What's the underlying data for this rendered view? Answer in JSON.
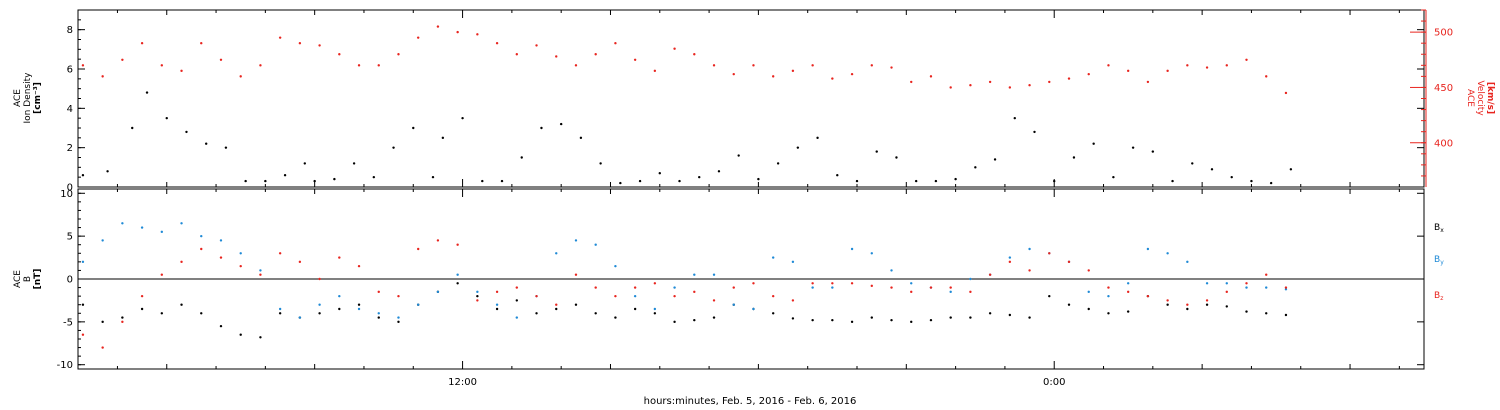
{
  "chart_data": [
    {
      "type": "scatter",
      "panel": "top",
      "xlabel": "hours:minutes, Feb.  5, 2016 - Feb.  6, 2016",
      "x_units": "hours since 2016-02-05 00:00",
      "xlim": [
        4.2,
        31.5
      ],
      "x_major_ticks": [
        12,
        24
      ],
      "x_major_labels": [
        "12:00",
        "0:00"
      ],
      "ylabel_left": [
        "ACE",
        "Ion Density",
        "[cm⁻³]"
      ],
      "ylim_left": [
        0,
        9
      ],
      "yticks_left": [
        0,
        2,
        4,
        6,
        8
      ],
      "ylabel_right": [
        "ACE",
        "Velocity",
        "[km/s]"
      ],
      "ylim_right": [
        360,
        520
      ],
      "yticks_right": [
        400,
        450,
        500
      ],
      "series": [
        {
          "name": "Ion Density",
          "axis": "left",
          "color": "#000000",
          "x": [
            4.3,
            4.8,
            5.3,
            5.6,
            6.0,
            6.4,
            6.8,
            7.2,
            7.6,
            8.0,
            8.4,
            8.8,
            9.0,
            9.4,
            9.8,
            10.2,
            10.6,
            11.0,
            11.4,
            11.6,
            12.0,
            12.4,
            12.8,
            13.2,
            13.6,
            14.0,
            14.4,
            14.8,
            15.2,
            15.6,
            16.0,
            16.4,
            16.8,
            17.2,
            17.6,
            18.0,
            18.4,
            18.8,
            19.2,
            19.6,
            20.0,
            20.4,
            20.8,
            21.2,
            21.6,
            22.0,
            22.4,
            22.8,
            23.2,
            23.6,
            24.0,
            24.4,
            24.8,
            25.2,
            25.6,
            26.0,
            26.4,
            26.8,
            27.2,
            27.6,
            28.0,
            28.4,
            28.8
          ],
          "y": [
            0.6,
            0.8,
            3.0,
            4.8,
            3.5,
            2.8,
            2.2,
            2.0,
            0.3,
            0.3,
            0.6,
            1.2,
            0.3,
            0.4,
            1.2,
            0.5,
            2.0,
            3.0,
            0.5,
            2.5,
            3.5,
            0.3,
            0.3,
            1.5,
            3.0,
            3.2,
            2.5,
            1.2,
            0.2,
            0.3,
            0.7,
            0.3,
            0.5,
            0.8,
            1.6,
            0.4,
            1.2,
            2.0,
            2.5,
            0.6,
            0.3,
            1.8,
            1.5,
            0.3,
            0.3,
            0.4,
            1.0,
            1.4,
            3.5,
            2.8,
            0.3,
            1.5,
            2.2,
            0.5,
            2.0,
            1.8,
            0.3,
            1.2,
            0.9,
            0.5,
            0.3,
            0.2,
            0.9
          ]
        },
        {
          "name": "Velocity",
          "axis": "right",
          "color": "#e8251f",
          "x": [
            4.3,
            4.7,
            5.1,
            5.5,
            5.9,
            6.3,
            6.7,
            7.1,
            7.5,
            7.9,
            8.3,
            8.7,
            9.1,
            9.5,
            9.9,
            10.3,
            10.7,
            11.1,
            11.5,
            11.9,
            12.3,
            12.7,
            13.1,
            13.5,
            13.9,
            14.3,
            14.7,
            15.1,
            15.5,
            15.9,
            16.3,
            16.7,
            17.1,
            17.5,
            17.9,
            18.3,
            18.7,
            19.1,
            19.5,
            19.9,
            20.3,
            20.7,
            21.1,
            21.5,
            21.9,
            22.3,
            22.7,
            23.1,
            23.5,
            23.9,
            24.3,
            24.7,
            25.1,
            25.5,
            25.9,
            26.3,
            26.7,
            27.1,
            27.5,
            27.9,
            28.3,
            28.7
          ],
          "y": [
            470,
            460,
            475,
            490,
            470,
            465,
            490,
            475,
            460,
            470,
            495,
            490,
            488,
            480,
            470,
            470,
            480,
            495,
            505,
            500,
            498,
            490,
            480,
            488,
            478,
            470,
            480,
            490,
            475,
            465,
            485,
            480,
            470,
            462,
            470,
            460,
            465,
            470,
            458,
            462,
            470,
            468,
            455,
            460,
            450,
            452,
            455,
            450,
            452,
            455,
            458,
            462,
            470,
            465,
            455,
            465,
            470,
            468,
            470,
            475,
            460,
            445
          ]
        }
      ]
    },
    {
      "type": "scatter",
      "panel": "bottom",
      "xlim": [
        4.2,
        31.5
      ],
      "ylabel": [
        "ACE",
        "B",
        "[nT]"
      ],
      "ylim": [
        -10.5,
        10.5
      ],
      "yticks": [
        -10,
        -5,
        0,
        5,
        10
      ],
      "zero_line": true,
      "legend_placement": "right",
      "series": [
        {
          "name": "Bx",
          "name_base": "B",
          "name_sub": "x",
          "color": "#000000",
          "x": [
            4.3,
            4.7,
            5.1,
            5.5,
            5.9,
            6.3,
            6.7,
            7.1,
            7.5,
            7.9,
            8.3,
            8.7,
            9.1,
            9.5,
            9.9,
            10.3,
            10.7,
            11.1,
            11.5,
            11.9,
            12.3,
            12.7,
            13.1,
            13.5,
            13.9,
            14.3,
            14.7,
            15.1,
            15.5,
            15.9,
            16.3,
            16.7,
            17.1,
            17.5,
            17.9,
            18.3,
            18.7,
            19.1,
            19.5,
            19.9,
            20.3,
            20.7,
            21.1,
            21.5,
            21.9,
            22.3,
            22.7,
            23.1,
            23.5,
            23.9,
            24.3,
            24.7,
            25.1,
            25.5,
            25.9,
            26.3,
            26.7,
            27.1,
            27.5,
            27.9,
            28.3,
            28.7
          ],
          "y": [
            -3.0,
            -5.0,
            -4.5,
            -3.5,
            -4.0,
            -3.0,
            -4.0,
            -5.5,
            -6.5,
            -6.8,
            -4.0,
            -4.5,
            -4.0,
            -3.5,
            -3.0,
            -4.5,
            -5.0,
            -3.0,
            -1.5,
            -0.5,
            -2.0,
            -3.5,
            -2.5,
            -4.0,
            -3.5,
            -3.0,
            -4.0,
            -4.5,
            -3.5,
            -4.0,
            -5.0,
            -4.8,
            -4.5,
            -3.0,
            -3.5,
            -4.0,
            -4.6,
            -4.8,
            -4.8,
            -5.0,
            -4.5,
            -4.8,
            -5.0,
            -4.8,
            -4.5,
            -4.5,
            -4.0,
            -4.2,
            -4.5,
            -2.0,
            -3.0,
            -3.5,
            -4.0,
            -3.8,
            -2.0,
            -3.0,
            -3.5,
            -3.0,
            -3.2,
            -3.8,
            -4.0,
            -4.2
          ]
        },
        {
          "name": "By",
          "name_base": "B",
          "name_sub": "y",
          "color": "#1f8ad6",
          "x": [
            4.3,
            4.7,
            5.1,
            5.5,
            5.9,
            6.3,
            6.7,
            7.1,
            7.5,
            7.9,
            8.3,
            8.7,
            9.1,
            9.5,
            9.9,
            10.3,
            10.7,
            11.1,
            11.5,
            11.9,
            12.3,
            12.7,
            13.1,
            13.5,
            13.9,
            14.3,
            14.7,
            15.1,
            15.5,
            15.9,
            16.3,
            16.7,
            17.1,
            17.5,
            17.9,
            18.3,
            18.7,
            19.1,
            19.5,
            19.9,
            20.3,
            20.7,
            21.1,
            21.5,
            21.9,
            22.3,
            22.7,
            23.1,
            23.5,
            23.9,
            24.3,
            24.7,
            25.1,
            25.5,
            25.9,
            26.3,
            26.7,
            27.1,
            27.5,
            27.9,
            28.3,
            28.7
          ],
          "y": [
            2.0,
            4.5,
            6.5,
            6.0,
            5.5,
            6.5,
            5.0,
            4.5,
            3.0,
            1.0,
            -3.5,
            -4.5,
            -3.0,
            -2.0,
            -3.5,
            -4.0,
            -4.5,
            -3.0,
            -1.5,
            0.5,
            -1.5,
            -3.0,
            -4.5,
            -2.0,
            3.0,
            4.5,
            4.0,
            1.5,
            -2.0,
            -3.5,
            -1.0,
            0.5,
            0.5,
            -3.0,
            -3.5,
            2.5,
            2.0,
            -1.0,
            -1.0,
            3.5,
            3.0,
            1.0,
            -0.5,
            -1.0,
            -1.5,
            0.0,
            0.5,
            2.5,
            3.5,
            3.0,
            2.0,
            -1.5,
            -2.0,
            -0.5,
            3.5,
            3.0,
            2.0,
            -0.5,
            -0.5,
            -1.0,
            -1.0,
            -1.2
          ]
        },
        {
          "name": "Bz",
          "name_base": "B",
          "name_sub": "z",
          "color": "#e8251f",
          "x": [
            4.3,
            4.7,
            5.1,
            5.5,
            5.9,
            6.3,
            6.7,
            7.1,
            7.5,
            7.9,
            8.3,
            8.7,
            9.1,
            9.5,
            9.9,
            10.3,
            10.7,
            11.1,
            11.5,
            11.9,
            12.3,
            12.7,
            13.1,
            13.5,
            13.9,
            14.3,
            14.7,
            15.1,
            15.5,
            15.9,
            16.3,
            16.7,
            17.1,
            17.5,
            17.9,
            18.3,
            18.7,
            19.1,
            19.5,
            19.9,
            20.3,
            20.7,
            21.1,
            21.5,
            21.9,
            22.3,
            22.7,
            23.1,
            23.5,
            23.9,
            24.3,
            24.7,
            25.1,
            25.5,
            25.9,
            26.3,
            26.7,
            27.1,
            27.5,
            27.9,
            28.3,
            28.7
          ],
          "y": [
            -6.5,
            -8.0,
            -5.0,
            -2.0,
            0.5,
            2.0,
            3.5,
            2.5,
            1.5,
            0.5,
            3.0,
            2.0,
            0.0,
            2.5,
            1.5,
            -1.5,
            -2.0,
            3.5,
            4.5,
            4.0,
            -2.5,
            -1.5,
            -1.0,
            -2.0,
            -3.0,
            0.5,
            -1.0,
            -2.0,
            -1.0,
            -0.5,
            -2.0,
            -1.5,
            -2.5,
            -1.0,
            -0.5,
            -2.0,
            -2.5,
            -0.5,
            -0.5,
            -0.5,
            -0.8,
            -1.0,
            -1.5,
            -1.0,
            -1.0,
            -1.5,
            0.5,
            2.0,
            1.0,
            3.0,
            2.0,
            1.0,
            -1.0,
            -1.5,
            -2.0,
            -2.5,
            -3.0,
            -2.5,
            -1.5,
            -0.5,
            0.5,
            -1.0
          ]
        }
      ]
    }
  ]
}
